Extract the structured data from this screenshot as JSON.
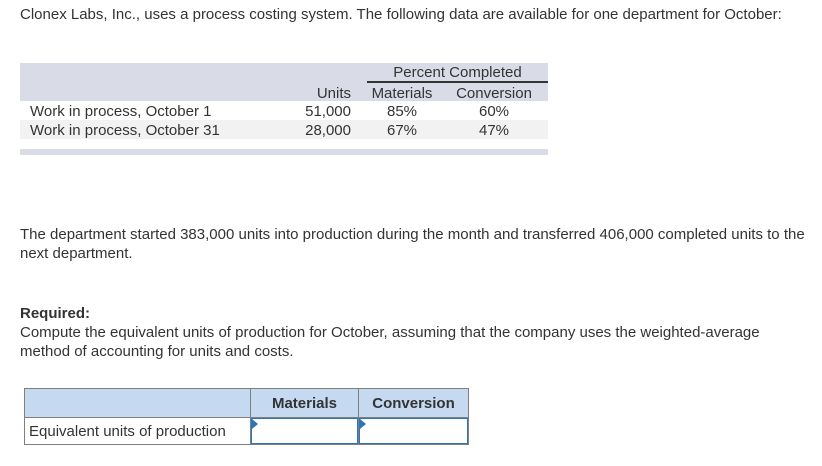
{
  "intro_text": "Clonex Labs, Inc., uses a process costing system. The following data are available for one department for October:",
  "data_table": {
    "percent_header": "Percent Completed",
    "col_units": "Units",
    "col_materials": "Materials",
    "col_conversion": "Conversion",
    "rows": [
      {
        "label": "Work in process, October 1",
        "units": "51,000",
        "materials": "85%",
        "conversion": "60%"
      },
      {
        "label": "Work in process, October 31",
        "units": "28,000",
        "materials": "67%",
        "conversion": "47%"
      }
    ]
  },
  "started_text": "The department started 383,000 units into production during the month and transferred 406,000 completed units to the next department.",
  "required_label": "Required:",
  "required_text": "Compute the equivalent units of production for October, assuming that the company uses the weighted-average method of accounting for units and costs.",
  "answer_table": {
    "col_materials": "Materials",
    "col_conversion": "Conversion",
    "row_label": "Equivalent units of production",
    "materials_value": "",
    "conversion_value": ""
  }
}
